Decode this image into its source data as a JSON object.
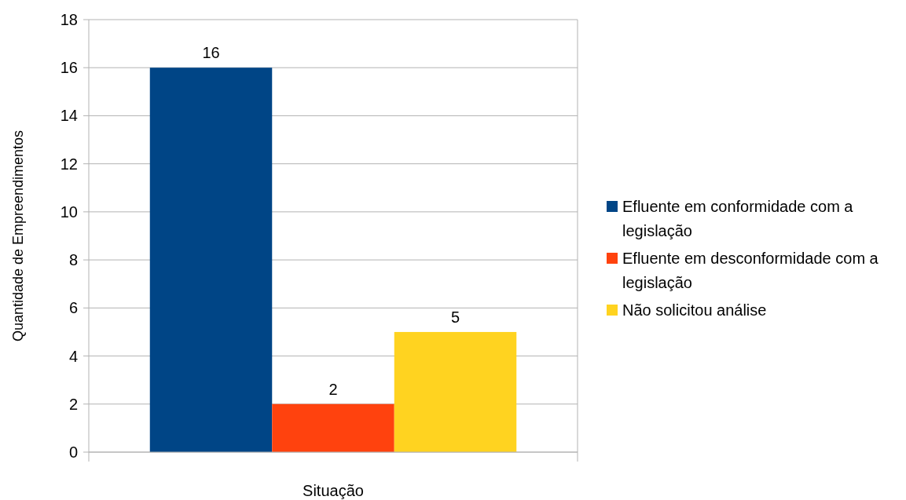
{
  "chart_data": {
    "type": "bar",
    "xlabel": "Situação",
    "ylabel": "Quantidade de Empreendimentos",
    "categories": [
      null
    ],
    "series": [
      {
        "name": "Efluente em conformidade com a legislação",
        "color": "#004586",
        "values": [
          16
        ]
      },
      {
        "name": "Efluente em desconformidade com a legislação",
        "color": "#ff420e",
        "values": [
          2
        ]
      },
      {
        "name": "Não solicitou análise",
        "color": "#ffd320",
        "values": [
          5
        ]
      }
    ],
    "ylim": [
      0,
      18
    ],
    "yticks": [
      0,
      2,
      4,
      6,
      8,
      10,
      12,
      14,
      16,
      18
    ],
    "grid": "y",
    "legend": "right",
    "data_labels": true
  }
}
